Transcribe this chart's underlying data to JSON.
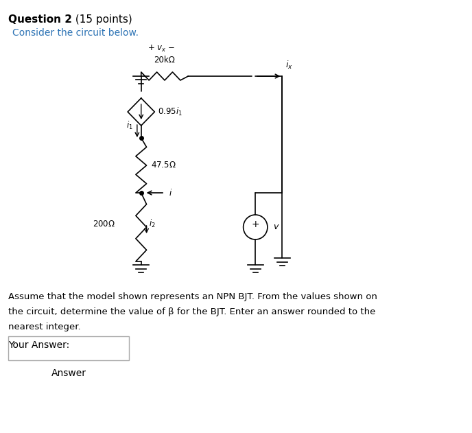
{
  "title_bold": "Question 2",
  "title_normal": " (15 points)",
  "subtitle": "Consider the circuit below.",
  "body_text_line1": "Assume that the model shown represents an NPN BJT. From the values shown on",
  "body_text_line2": "the circuit, determine the value of β for the BJT. Enter an answer rounded to the",
  "body_text_line3": "nearest integer.",
  "your_answer_label": "Your Answer:",
  "answer_label": "Answer",
  "text_color_black": "#000000",
  "text_color_blue": "#2E74B5",
  "background_color": "#ffffff",
  "circuit": {
    "resistor_20k_label": "20kΩ",
    "resistor_475_label": "47.5Ω",
    "resistor_200_label": "200Ω",
    "current_source_label": "0.95i₁",
    "voltage_source_label": "v",
    "vx_label": "+ vₓ −",
    "ix_label": "iₓ",
    "i_label": "i",
    "i1_label": "i₁",
    "i2_label": "i₂"
  }
}
